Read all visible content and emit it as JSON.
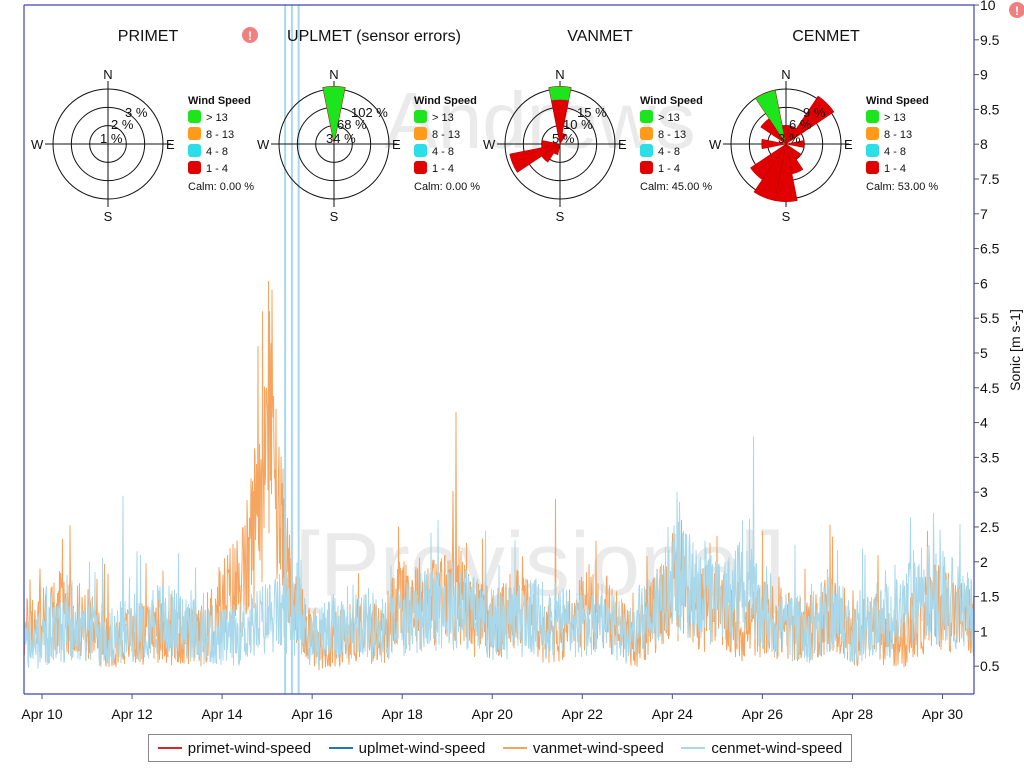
{
  "chart_data": {
    "type": "line",
    "ylabel": "Sonic [m s-1]",
    "y_ticks": [
      "0.5",
      "1",
      "1.5",
      "2",
      "2.5",
      "3",
      "3.5",
      "4",
      "4.5",
      "5",
      "5.5",
      "6",
      "6.5",
      "7",
      "7.5",
      "8",
      "8.5",
      "9",
      "9.5",
      "10"
    ],
    "ylim": [
      0.1,
      10
    ],
    "x_ticks": [
      "Apr 10",
      "Apr 12",
      "Apr 14",
      "Apr 16",
      "Apr 18",
      "Apr 20",
      "Apr 22",
      "Apr 24",
      "Apr 26",
      "Apr 28",
      "Apr 30"
    ],
    "xlim_days": [
      9.6,
      30.7
    ],
    "watermarks": [
      "Andrews",
      "[Provisional]"
    ],
    "series": [
      {
        "name": "primet-wind-speed",
        "color": "#d62728",
        "values": []
      },
      {
        "name": "uplmet-wind-speed",
        "color": "#1f77b4",
        "values": []
      },
      {
        "name": "vanmet-wind-speed",
        "color": "#f5a55f",
        "keypoints": [
          [
            9.6,
            1.0
          ],
          [
            10.5,
            1.3
          ],
          [
            11.5,
            0.9
          ],
          [
            12.5,
            1.0
          ],
          [
            13.5,
            0.9
          ],
          [
            14.0,
            1.4
          ],
          [
            14.5,
            1.8
          ],
          [
            14.9,
            3.2
          ],
          [
            15.1,
            4.2
          ],
          [
            15.3,
            2.5
          ],
          [
            15.6,
            1.3
          ],
          [
            16.2,
            0.8
          ],
          [
            17.0,
            1.0
          ],
          [
            17.6,
            1.0
          ],
          [
            18.0,
            1.5
          ],
          [
            18.6,
            1.4
          ],
          [
            19.2,
            1.6
          ],
          [
            19.6,
            1.2
          ],
          [
            20.2,
            1.1
          ],
          [
            20.6,
            1.5
          ],
          [
            21.0,
            1.0
          ],
          [
            21.6,
            0.9
          ],
          [
            22.2,
            1.4
          ],
          [
            22.6,
            1.2
          ],
          [
            23.2,
            0.9
          ],
          [
            24.0,
            1.6
          ],
          [
            24.4,
            1.4
          ],
          [
            25.0,
            1.3
          ],
          [
            25.5,
            1.0
          ],
          [
            26.0,
            1.2
          ],
          [
            27.0,
            1.0
          ],
          [
            27.5,
            1.3
          ],
          [
            28.0,
            0.9
          ],
          [
            28.5,
            1.1
          ],
          [
            29.0,
            0.8
          ],
          [
            29.5,
            1.2
          ],
          [
            30.0,
            1.4
          ],
          [
            30.7,
            1.1
          ]
        ],
        "spikes": [
          [
            14.9,
            5.6
          ],
          [
            15.05,
            5.6
          ],
          [
            14.8,
            5.1
          ],
          [
            19.2,
            4.15
          ],
          [
            15.2,
            4.2
          ],
          [
            21.4,
            2.9
          ],
          [
            22.3,
            2.3
          ],
          [
            24.2,
            2.6
          ]
        ]
      },
      {
        "name": "cenmet-wind-speed",
        "color": "#a8d8ea",
        "keypoints": [
          [
            9.6,
            0.8
          ],
          [
            10.5,
            1.0
          ],
          [
            11.5,
            0.9
          ],
          [
            12.5,
            1.2
          ],
          [
            13.5,
            1.0
          ],
          [
            14.0,
            0.9
          ],
          [
            14.5,
            1.0
          ],
          [
            15.0,
            1.2
          ],
          [
            15.5,
            1.3
          ],
          [
            16.0,
            0.9
          ],
          [
            17.0,
            1.2
          ],
          [
            17.6,
            1.0
          ],
          [
            18.0,
            1.2
          ],
          [
            19.0,
            1.4
          ],
          [
            19.6,
            1.3
          ],
          [
            20.0,
            1.1
          ],
          [
            21.0,
            1.2
          ],
          [
            22.0,
            1.1
          ],
          [
            23.0,
            1.0
          ],
          [
            23.6,
            1.3
          ],
          [
            24.0,
            1.8
          ],
          [
            24.5,
            1.6
          ],
          [
            25.0,
            1.4
          ],
          [
            25.6,
            1.6
          ],
          [
            26.0,
            1.2
          ],
          [
            27.0,
            1.0
          ],
          [
            27.5,
            1.3
          ],
          [
            28.0,
            1.0
          ],
          [
            29.0,
            1.2
          ],
          [
            29.5,
            1.6
          ],
          [
            30.0,
            1.5
          ],
          [
            30.7,
            1.2
          ]
        ],
        "spikes": [
          [
            11.8,
            2.95
          ],
          [
            25.8,
            3.8
          ],
          [
            24.1,
            3.0
          ],
          [
            29.8,
            2.7
          ],
          [
            18.8,
            2.6
          ],
          [
            23.9,
            2.5
          ]
        ],
        "error_spikes": [
          15.4,
          15.55,
          15.7
        ]
      }
    ],
    "wind_roses": [
      {
        "title": "PRIMET",
        "warning": true,
        "rings": [
          "1 %",
          "2 %",
          "3 %"
        ],
        "petals": [],
        "legend_title": "Wind Speed",
        "legend_items": [
          "> 13",
          "8 - 13",
          "4 - 8",
          "1 - 4"
        ],
        "calm": "Calm: 0.00 %"
      },
      {
        "title": "UPLMET (sensor errors)",
        "warning": false,
        "rings": [
          "34 %",
          "68 %",
          "102 %"
        ],
        "petals": [
          {
            "dir_deg": 0,
            "pct": 110,
            "color": "#1de51d"
          }
        ],
        "legend_title": "Wind Speed",
        "legend_items": [
          "> 13",
          "8 - 13",
          "4 - 8",
          "1 - 4"
        ],
        "calm": "Calm: 0.00 %"
      },
      {
        "title": "VANMET",
        "warning": false,
        "rings": [
          "5 %",
          "10 %",
          "15 %"
        ],
        "petals": [
          {
            "dir_deg": 0,
            "pct": 16,
            "color": "#1de51d"
          },
          {
            "dir_deg": 0,
            "pct": 12,
            "color": "#e00000"
          },
          {
            "dir_deg": 22.5,
            "pct": 3,
            "color": "#e00000"
          },
          {
            "dir_deg": 202.5,
            "pct": 3,
            "color": "#e00000"
          },
          {
            "dir_deg": 225,
            "pct": 6,
            "color": "#e00000"
          },
          {
            "dir_deg": 247.5,
            "pct": 14,
            "color": "#e00000"
          },
          {
            "dir_deg": 270,
            "pct": 5,
            "color": "#e00000"
          }
        ],
        "legend_title": "Wind Speed",
        "legend_items": [
          "> 13",
          "8 - 13",
          "4 - 8",
          "1 - 4"
        ],
        "calm": "Calm: 45.00 %"
      },
      {
        "title": "CENMET",
        "warning": false,
        "rings": [
          "3 %",
          "6 %",
          "9 %"
        ],
        "petals": [
          {
            "dir_deg": 337.5,
            "pct": 9,
            "color": "#1de51d"
          },
          {
            "dir_deg": 0,
            "pct": 3,
            "color": "#e00000"
          },
          {
            "dir_deg": 22.5,
            "pct": 3,
            "color": "#e00000"
          },
          {
            "dir_deg": 45,
            "pct": 11,
            "color": "#e00000"
          },
          {
            "dir_deg": 90,
            "pct": 3,
            "color": "#e00000"
          },
          {
            "dir_deg": 135,
            "pct": 3,
            "color": "#e00000"
          },
          {
            "dir_deg": 157.5,
            "pct": 5,
            "color": "#e00000"
          },
          {
            "dir_deg": 180,
            "pct": 12,
            "color": "#e00000"
          },
          {
            "dir_deg": 202.5,
            "pct": 11,
            "color": "#e00000"
          },
          {
            "dir_deg": 225,
            "pct": 7,
            "color": "#e00000"
          },
          {
            "dir_deg": 270,
            "pct": 4,
            "color": "#e00000"
          },
          {
            "dir_deg": 315,
            "pct": 5,
            "color": "#e00000"
          }
        ],
        "legend_title": "Wind Speed",
        "legend_items": [
          "> 13",
          "8 - 13",
          "4 - 8",
          "1 - 4"
        ],
        "calm": "Calm: 53.00 %"
      }
    ],
    "compass": {
      "n": "N",
      "e": "E",
      "s": "S",
      "w": "W"
    },
    "speed_colors": [
      "#1de51d",
      "#ff9a1a",
      "#2bdfe8",
      "#e00000"
    ],
    "warning_colors": {
      "fill": "#f08080",
      "mark": "#ffffff"
    }
  }
}
